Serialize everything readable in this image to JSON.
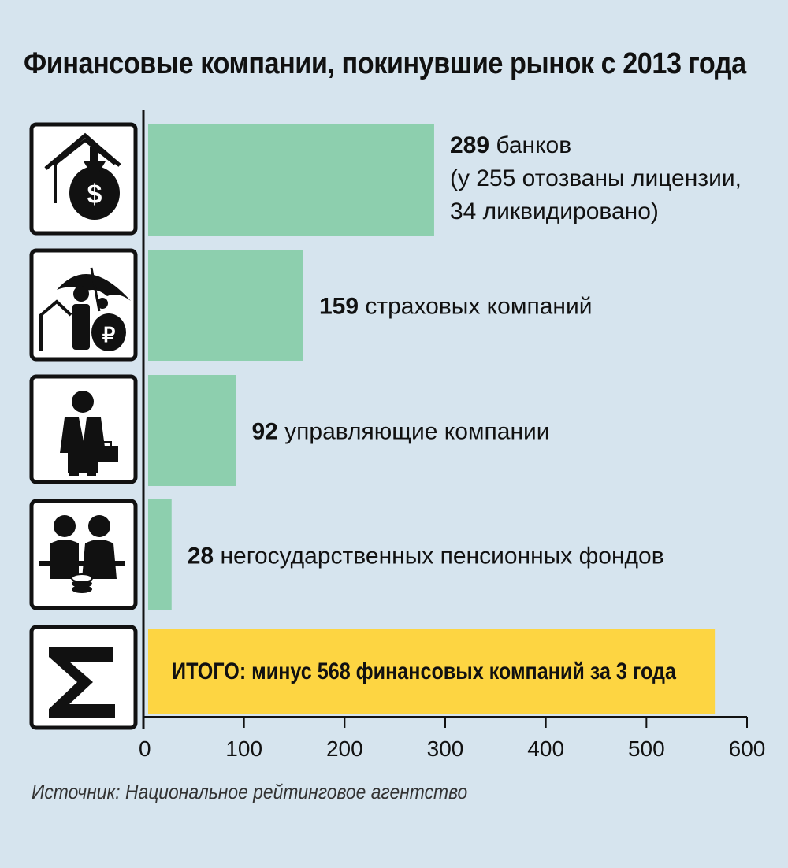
{
  "title": "Финансовые компании, покинувшие рынок с 2013 года",
  "source": "Источник: Национальное рейтинговое агентство",
  "colors": {
    "bar": "#8dcfae",
    "total": "#fdd542",
    "background": "#d6e4ee",
    "axis": "#111111"
  },
  "chart_data": {
    "type": "bar",
    "orientation": "horizontal",
    "categories": [
      "банков",
      "страховых компаний",
      "управляющие компании",
      "негосударственных пенсионных фондов",
      "ИТОГО"
    ],
    "values": [
      289,
      159,
      92,
      28,
      568
    ],
    "icons": [
      "house-money-bag-icon",
      "umbrella-family-icon",
      "businessman-briefcase-icon",
      "elderly-couple-coins-icon",
      "sigma-icon"
    ],
    "labels": [
      {
        "number": "289",
        "text": "банков",
        "lines": [
          "(у 255 отозваны лицензии,",
          "34 ликвидировано)"
        ]
      },
      {
        "number": "159",
        "text": "страховых компаний",
        "lines": []
      },
      {
        "number": "92",
        "text": "управляющие компании",
        "lines": []
      },
      {
        "number": "28",
        "text": "негосударственных пенсионных фондов",
        "lines": []
      },
      {
        "number": "",
        "text": "ИТОГО: минус 568 финансовых компаний за 3 года",
        "lines": []
      }
    ],
    "xlim": [
      0,
      600
    ],
    "xticks": [
      0,
      100,
      200,
      300,
      400,
      500,
      600
    ],
    "title": "Финансовые компании, покинувшие рынок с 2013 года",
    "xlabel": "",
    "ylabel": "",
    "grid": false
  }
}
